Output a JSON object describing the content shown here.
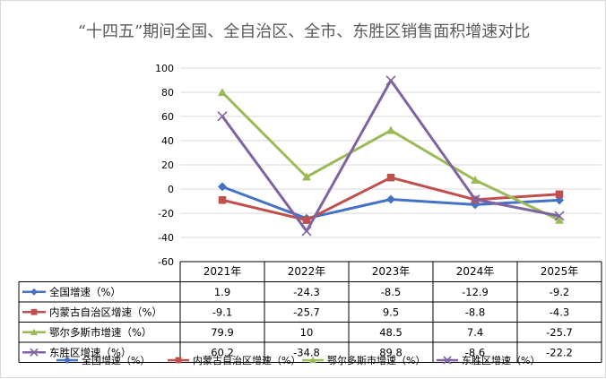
{
  "chart_data": {
    "type": "line",
    "title": "“十四五”期间全国、全自治区、全市、东胜区销售面积增速对比",
    "categories": [
      "2021年",
      "2022年",
      "2023年",
      "2024年",
      "2025年"
    ],
    "ylim": [
      -60,
      100
    ],
    "yticks": [
      "100",
      "80",
      "60",
      "40",
      "20",
      "0",
      "-20",
      "-40",
      "-60"
    ],
    "grid": true,
    "legend_position": "bottom",
    "series": [
      {
        "name": "全国增速（%）",
        "color": "#4472c4",
        "marker": "diamond",
        "values": [
          1.9,
          -24.3,
          -8.5,
          -12.9,
          -9.2
        ],
        "labels": [
          "1.9",
          "-24.3",
          "-8.5",
          "-12.9",
          "-9.2"
        ]
      },
      {
        "name": "内蒙古自治区增速（%）",
        "color": "#c0504d",
        "marker": "square",
        "values": [
          -9.1,
          -25.7,
          9.5,
          -8.8,
          -4.3
        ],
        "labels": [
          "-9.1",
          "-25.7",
          "9.5",
          "-8.8",
          "-4.3"
        ]
      },
      {
        "name": "鄂尔多斯市增速（%）",
        "color": "#9bbb59",
        "marker": "triangle",
        "values": [
          79.9,
          10,
          48.5,
          7.4,
          -25.7
        ],
        "labels": [
          "79.9",
          "10",
          "48.5",
          "7.4",
          "-25.7"
        ]
      },
      {
        "name": "东胜区增速（%）",
        "color": "#8064a2",
        "marker": "x",
        "values": [
          60.2,
          -34.8,
          89.8,
          -8.6,
          -22.2
        ],
        "labels": [
          "60.2",
          "-34.8",
          "89.8",
          "-8.6",
          "-22.2"
        ]
      }
    ]
  }
}
